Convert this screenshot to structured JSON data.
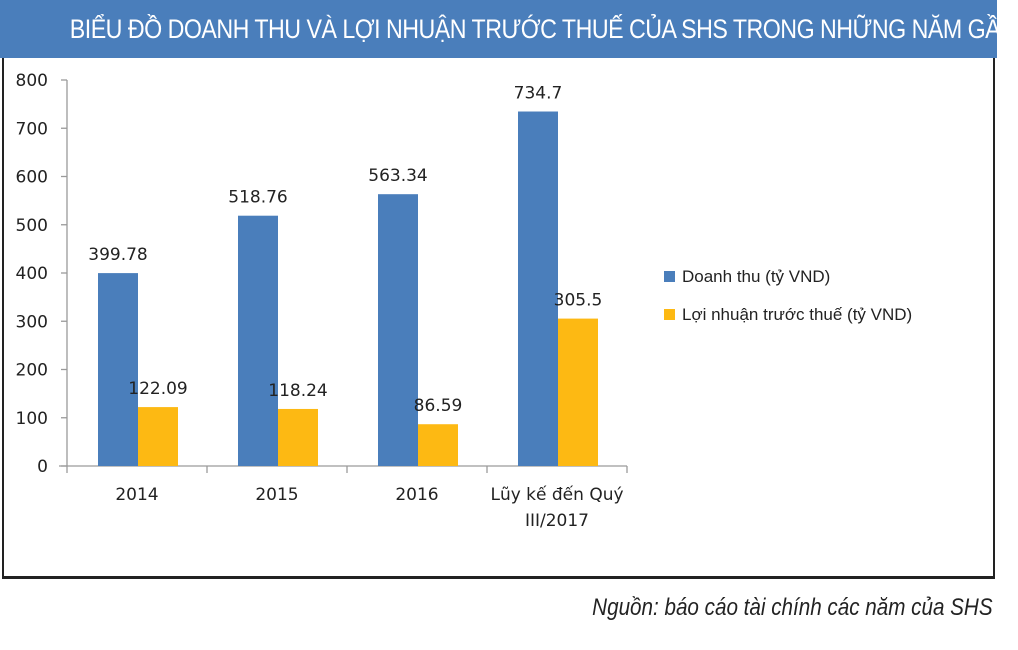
{
  "header": {
    "title": "BIỂU ĐỒ DOANH THU VÀ LỢI NHUẬN TRƯỚC THUẾ CỦA SHS TRONG NHỮNG NĂM GẦN ĐÂY"
  },
  "footer": {
    "source": "Nguồn: báo cáo tài chính các năm của SHS"
  },
  "colors": {
    "title_bg": "#4a7ebb",
    "series_revenue": "#4a7ebb",
    "series_profit": "#fdb913",
    "axis": "#9a9a9a",
    "text": "#222222"
  },
  "chart_data": {
    "type": "bar",
    "title": "BIỂU ĐỒ DOANH THU VÀ LỢI NHUẬN TRƯỚC THUẾ CỦA SHS TRONG NHỮNG NĂM GẦN ĐÂY",
    "categories": [
      [
        "2014"
      ],
      [
        "2015"
      ],
      [
        "2016"
      ],
      [
        "Lũy kế đến Quý",
        "III/2017"
      ]
    ],
    "series": [
      {
        "name": "Doanh thu (tỷ VND)",
        "values": [
          399.78,
          518.76,
          563.34,
          734.7
        ],
        "labels": [
          "399.78",
          "518.76",
          "563.34",
          "734.7"
        ]
      },
      {
        "name": "Lợi nhuận  trước thuế (tỷ VND)",
        "values": [
          122.09,
          118.24,
          86.59,
          305.5
        ],
        "labels": [
          "122.09",
          "118.24",
          "86.59",
          "305.5"
        ]
      }
    ],
    "yticks": [
      "0",
      "100",
      "200",
      "300",
      "400",
      "500",
      "600",
      "700",
      "800"
    ],
    "ylim": [
      0,
      800
    ],
    "xlabel": "",
    "ylabel": "",
    "grid": false,
    "legend_position": "right"
  }
}
